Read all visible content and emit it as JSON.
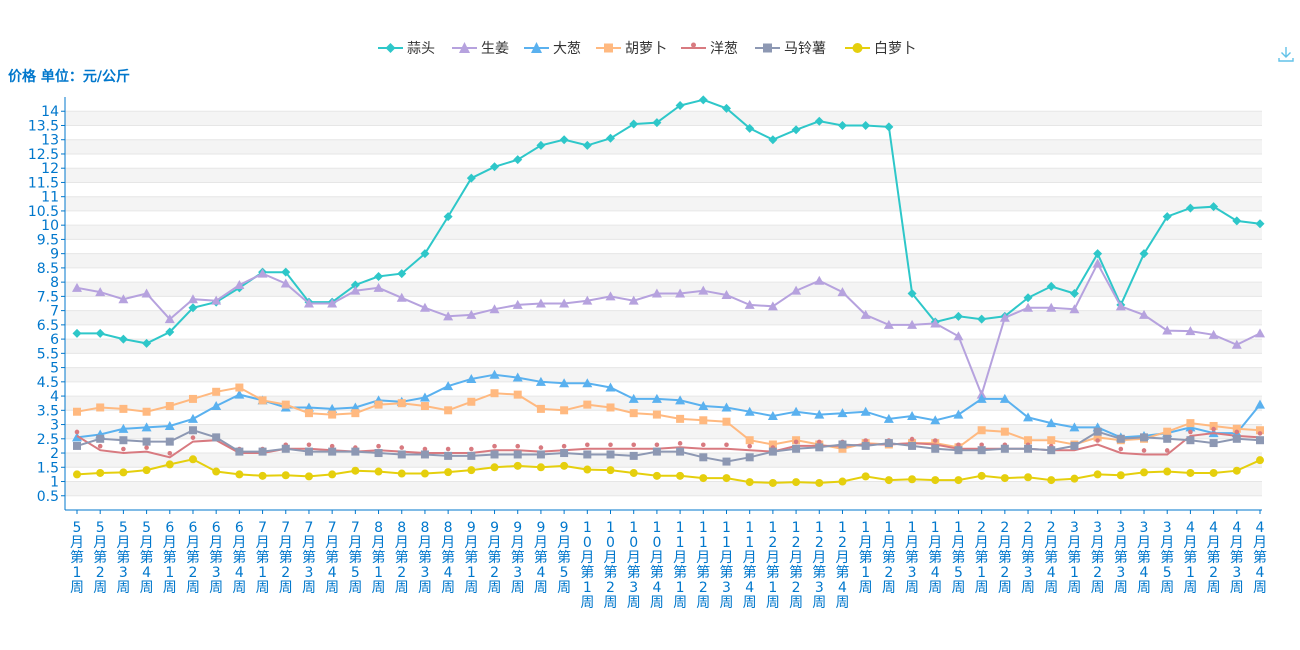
{
  "y_unit_label": "价格 单位：元/公斤",
  "icons": {
    "download": "download-icon"
  },
  "chart_data": {
    "type": "line",
    "title": "",
    "xlabel": "",
    "ylabel": "价格 单位：元/公斤",
    "ylim": [
      0,
      14.5
    ],
    "yticks": [
      0.5,
      1,
      1.5,
      2,
      2.5,
      3,
      3.5,
      4,
      4.5,
      5,
      5.5,
      6,
      6.5,
      7,
      7.5,
      8,
      8.5,
      9,
      9.5,
      10,
      10.5,
      11,
      11.5,
      12,
      12.5,
      13,
      13.5,
      14
    ],
    "ytick_labels": [
      "0.5",
      "1",
      "1.5",
      "2",
      "2.5",
      "3",
      "3.5",
      "4",
      "4.5",
      "5",
      "5.5",
      "6",
      "6.5",
      "7",
      "7.5",
      "8",
      "8.5",
      "9",
      "9.5",
      "10",
      "10.5",
      "11",
      "11.5",
      "12",
      "12.5",
      "13",
      "13.5",
      "14"
    ],
    "legend_position": "top-center",
    "grid": true,
    "categories": [
      "5月第1周",
      "5月第2周",
      "5月第3周",
      "5月第4周",
      "6月第1周",
      "6月第2周",
      "6月第3周",
      "6月第4周",
      "7月第1周",
      "7月第2周",
      "7月第3周",
      "7月第4周",
      "7月第5周",
      "8月第1周",
      "8月第2周",
      "8月第3周",
      "8月第4周",
      "9月第1周",
      "9月第2周",
      "9月第3周",
      "9月第4周",
      "9月第5周",
      "10月第1周",
      "10月第2周",
      "10月第3周",
      "10月第4周",
      "11月第1周",
      "11月第2周",
      "11月第3周",
      "11月第4周",
      "12月第1周",
      "12月第2周",
      "12月第3周",
      "12月第4周",
      "1月第1周",
      "1月第2周",
      "1月第3周",
      "1月第4周",
      "1月第5周",
      "2月第1周",
      "2月第2周",
      "2月第3周",
      "2月第4周",
      "3月第1周",
      "3月第2周",
      "3月第3周",
      "3月第4周",
      "3月第5周",
      "4月第1周",
      "4月第2周",
      "4月第3周",
      "4月第4周"
    ],
    "series": [
      {
        "name": "蒜头",
        "color": "#2ec7c9",
        "marker": "diamond",
        "values": [
          6.2,
          6.2,
          6.0,
          5.85,
          6.25,
          7.1,
          7.3,
          7.8,
          8.35,
          8.35,
          7.3,
          7.3,
          7.9,
          8.2,
          8.3,
          9.0,
          10.3,
          11.65,
          12.05,
          12.3,
          12.8,
          13.0,
          12.8,
          13.05,
          13.55,
          13.6,
          14.2,
          14.4,
          14.1,
          13.4,
          13.0,
          13.35,
          13.65,
          13.5,
          13.5,
          13.45,
          7.6,
          6.6,
          6.8,
          6.7,
          6.8,
          7.45,
          7.85,
          7.6,
          9.0,
          7.2,
          9.0,
          10.3,
          10.6,
          10.65,
          10.15,
          10.05
        ]
      },
      {
        "name": "生姜",
        "color": "#b6a2de",
        "marker": "triangle",
        "values": [
          7.8,
          7.65,
          7.4,
          7.6,
          6.7,
          7.4,
          7.35,
          7.9,
          8.3,
          7.95,
          7.25,
          7.25,
          7.7,
          7.8,
          7.45,
          7.1,
          6.8,
          6.85,
          7.05,
          7.2,
          7.25,
          7.25,
          7.35,
          7.5,
          7.35,
          7.6,
          7.6,
          7.7,
          7.55,
          7.2,
          7.15,
          7.7,
          8.05,
          7.65,
          6.85,
          6.5,
          6.5,
          6.55,
          6.1,
          4.05,
          6.75,
          7.1,
          7.1,
          7.05,
          8.65,
          7.15,
          6.85,
          6.3,
          6.28,
          6.15,
          5.8,
          6.2
        ]
      },
      {
        "name": "大葱",
        "color": "#5ab1ef",
        "marker": "triangle",
        "values": [
          2.55,
          2.65,
          2.85,
          2.9,
          2.95,
          3.2,
          3.65,
          4.05,
          3.85,
          3.6,
          3.6,
          3.55,
          3.6,
          3.85,
          3.8,
          3.95,
          4.35,
          4.6,
          4.75,
          4.65,
          4.5,
          4.45,
          4.45,
          4.3,
          3.9,
          3.9,
          3.85,
          3.65,
          3.6,
          3.45,
          3.3,
          3.45,
          3.35,
          3.4,
          3.45,
          3.2,
          3.3,
          3.15,
          3.35,
          3.9,
          3.9,
          3.25,
          3.05,
          2.9,
          2.9,
          2.55,
          2.6,
          2.7,
          2.9,
          2.7,
          2.7,
          3.7
        ]
      },
      {
        "name": "胡萝卜",
        "color": "#ffb980",
        "marker": "square",
        "values": [
          3.45,
          3.6,
          3.55,
          3.45,
          3.65,
          3.9,
          4.15,
          4.3,
          3.85,
          3.7,
          3.4,
          3.35,
          3.4,
          3.7,
          3.75,
          3.65,
          3.5,
          3.8,
          4.1,
          4.05,
          3.55,
          3.5,
          3.7,
          3.6,
          3.4,
          3.35,
          3.2,
          3.15,
          3.1,
          2.45,
          2.3,
          2.45,
          2.3,
          2.15,
          2.35,
          2.3,
          2.35,
          2.35,
          2.2,
          2.8,
          2.75,
          2.45,
          2.45,
          2.3,
          2.55,
          2.45,
          2.5,
          2.75,
          3.05,
          2.95,
          2.85,
          2.8
        ]
      },
      {
        "name": "洋葱",
        "color": "#d87a80",
        "marker": "pin",
        "values": [
          2.6,
          2.1,
          2.0,
          2.05,
          1.85,
          2.4,
          2.45,
          2.0,
          2.0,
          2.15,
          2.15,
          2.1,
          2.05,
          2.1,
          2.05,
          2.0,
          2.0,
          2.0,
          2.1,
          2.1,
          2.05,
          2.1,
          2.15,
          2.15,
          2.15,
          2.15,
          2.2,
          2.15,
          2.15,
          2.1,
          2.05,
          2.25,
          2.25,
          2.25,
          2.3,
          2.3,
          2.35,
          2.3,
          2.15,
          2.15,
          2.15,
          2.15,
          2.1,
          2.1,
          2.3,
          2.0,
          1.95,
          1.95,
          2.6,
          2.7,
          2.6,
          2.55
        ]
      },
      {
        "name": "马铃薯",
        "color": "#8d98b3",
        "marker": "square",
        "values": [
          2.25,
          2.5,
          2.45,
          2.4,
          2.4,
          2.8,
          2.55,
          2.05,
          2.05,
          2.15,
          2.05,
          2.05,
          2.05,
          2.0,
          1.95,
          1.95,
          1.9,
          1.9,
          1.95,
          1.95,
          1.95,
          2.0,
          1.95,
          1.95,
          1.9,
          2.05,
          2.05,
          1.85,
          1.7,
          1.85,
          2.05,
          2.15,
          2.2,
          2.3,
          2.25,
          2.35,
          2.25,
          2.15,
          2.1,
          2.1,
          2.15,
          2.15,
          2.1,
          2.25,
          2.75,
          2.5,
          2.55,
          2.5,
          2.45,
          2.35,
          2.5,
          2.45
        ]
      },
      {
        "name": "白萝卜",
        "color": "#e5cf0d",
        "marker": "circle",
        "values": [
          1.25,
          1.3,
          1.32,
          1.4,
          1.6,
          1.78,
          1.35,
          1.25,
          1.2,
          1.22,
          1.18,
          1.25,
          1.38,
          1.35,
          1.28,
          1.28,
          1.33,
          1.4,
          1.5,
          1.55,
          1.5,
          1.55,
          1.42,
          1.4,
          1.3,
          1.2,
          1.2,
          1.12,
          1.12,
          0.98,
          0.95,
          0.98,
          0.95,
          1.0,
          1.18,
          1.05,
          1.08,
          1.05,
          1.05,
          1.2,
          1.12,
          1.15,
          1.05,
          1.1,
          1.25,
          1.22,
          1.32,
          1.35,
          1.3,
          1.3,
          1.38,
          1.75
        ]
      }
    ]
  }
}
